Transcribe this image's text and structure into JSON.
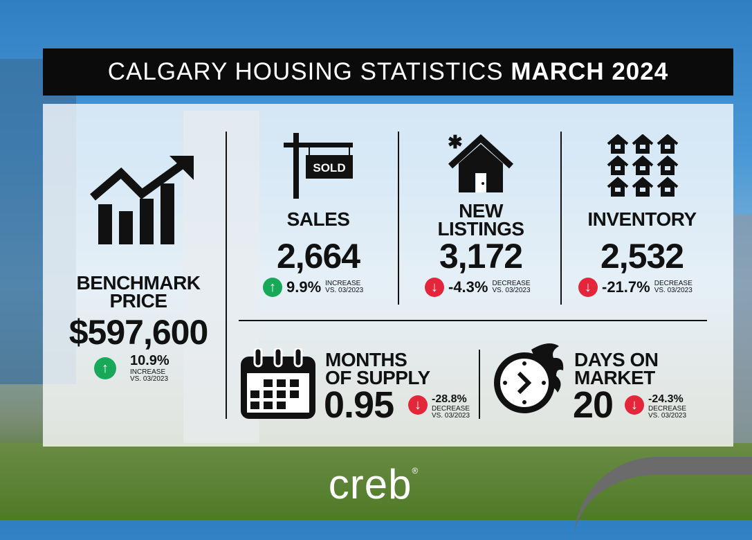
{
  "title": {
    "prefix": "CALGARY HOUSING STATISTICS",
    "period": "MARCH 2024"
  },
  "benchmark": {
    "label_1": "BENCHMARK",
    "label_2": "PRICE",
    "value": "$597,600",
    "change": "10.9%",
    "direction": "INCREASE",
    "compare": "VS. 03/2023"
  },
  "sales": {
    "label": "SALES",
    "sign_text": "SOLD",
    "value": "2,664",
    "change": "9.9%",
    "direction": "INCREASE",
    "compare": "VS. 03/2023"
  },
  "new_listings": {
    "label_1": "NEW",
    "label_2": "LISTINGS",
    "value": "3,172",
    "change": "-4.3%",
    "direction": "DECREASE",
    "compare": "VS. 03/2023"
  },
  "inventory": {
    "label": "INVENTORY",
    "value": "2,532",
    "change": "-21.7%",
    "direction": "DECREASE",
    "compare": "VS. 03/2023"
  },
  "months_supply": {
    "label_1": "MONTHS",
    "label_2": "OF SUPPLY",
    "value": "0.95",
    "change": "-28.8%",
    "direction": "DECREASE",
    "compare": "VS. 03/2023"
  },
  "days_on_market": {
    "label_1": "DAYS ON",
    "label_2": "MARKET",
    "value": "20",
    "change": "-24.3%",
    "direction": "DECREASE",
    "compare": "VS. 03/2023"
  },
  "logo": {
    "text": "creb",
    "mark": "®"
  },
  "colors": {
    "increase": "#17a85a",
    "decrease": "#e3263a"
  }
}
